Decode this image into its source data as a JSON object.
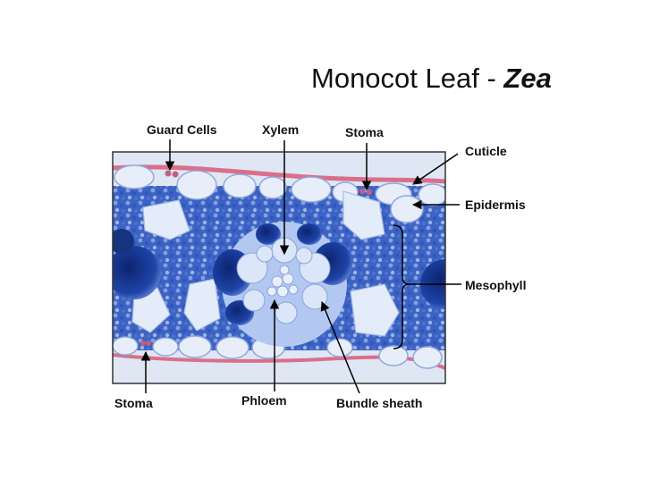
{
  "title": {
    "main": "Monocot Leaf - ",
    "italic": "Zea"
  },
  "labels": {
    "guard_cells": "Guard Cells",
    "xylem": "Xylem",
    "stoma_top": "Stoma",
    "cuticle": "Cuticle",
    "epidermis": "Epidermis",
    "mesophyll": "Mesophyll",
    "stoma_bottom": "Stoma",
    "phloem": "Phloem",
    "bundle_sheath": "Bundle sheath"
  },
  "colors": {
    "tissue_blue": "#3c63c4",
    "cell_pale": "#e3ecf8",
    "cuticle_pink": "#d96f8a",
    "dark_blue": "#10286e",
    "background": "#ffffff"
  }
}
